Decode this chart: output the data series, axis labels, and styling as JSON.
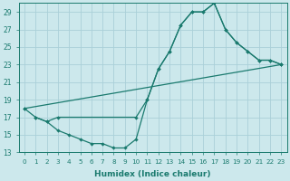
{
  "xlabel": "Humidex (Indice chaleur)",
  "bg_color": "#cce8ec",
  "grid_color": "#aad0d8",
  "line_color": "#1a7a6e",
  "xlim": [
    -0.5,
    23.5
  ],
  "ylim": [
    13,
    30
  ],
  "xticks": [
    0,
    1,
    2,
    3,
    4,
    5,
    6,
    7,
    8,
    9,
    10,
    11,
    12,
    13,
    14,
    15,
    16,
    17,
    18,
    19,
    20,
    21,
    22,
    23
  ],
  "yticks": [
    13,
    15,
    17,
    19,
    21,
    23,
    25,
    27,
    29
  ],
  "line1_x": [
    0,
    1,
    2,
    3,
    10,
    11,
    12,
    13,
    14,
    15,
    16,
    17,
    18,
    19,
    20,
    21,
    22,
    23
  ],
  "line1_y": [
    18.0,
    17.0,
    16.5,
    17.0,
    17.0,
    19.0,
    22.5,
    24.5,
    27.5,
    29.0,
    29.0,
    30.0,
    27.0,
    25.5,
    24.5,
    23.5,
    23.5,
    23.0
  ],
  "line2_x": [
    0,
    23
  ],
  "line2_y": [
    18.0,
    23.0
  ],
  "line3_x": [
    1,
    2,
    3,
    4,
    5,
    6,
    7,
    8,
    9,
    10,
    11,
    12,
    13,
    14,
    15,
    16,
    17,
    18,
    19,
    20,
    21,
    22,
    23
  ],
  "line3_y": [
    17.0,
    16.5,
    15.5,
    15.0,
    14.5,
    14.0,
    14.0,
    13.5,
    13.5,
    14.5,
    19.0,
    22.5,
    24.5,
    27.5,
    29.0,
    29.0,
    30.0,
    27.0,
    25.5,
    24.5,
    23.5,
    23.5,
    23.0
  ],
  "xtick_fontsize": 5.2,
  "ytick_fontsize": 5.5,
  "xlabel_fontsize": 6.5
}
